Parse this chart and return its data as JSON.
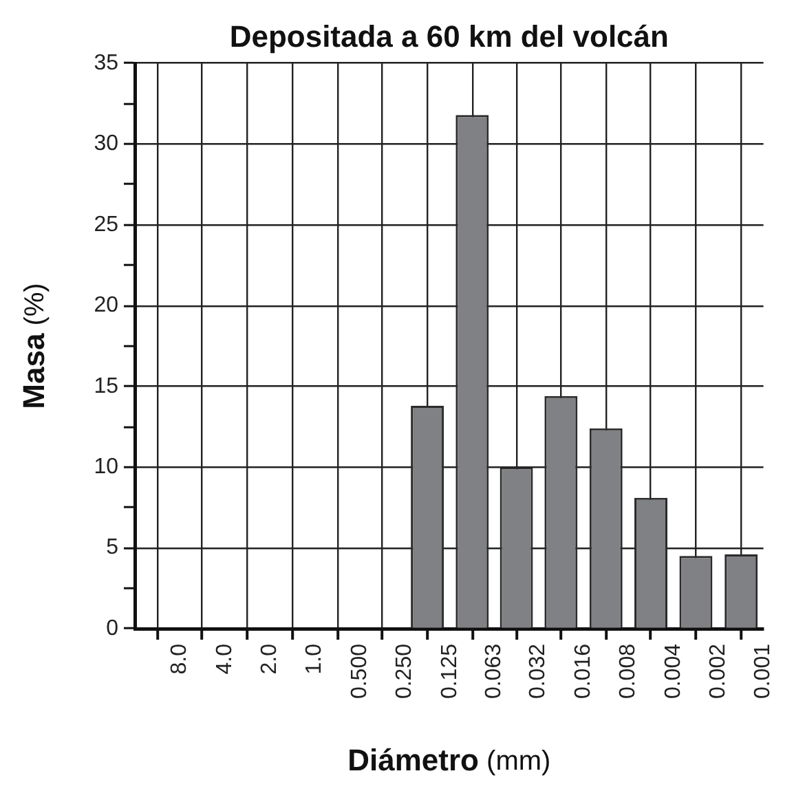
{
  "chart_data": {
    "type": "bar",
    "title": "Depositada a 60 km del volcán",
    "xlabel": "Diámetro (mm)",
    "ylabel": "Masa (%)",
    "x": [
      0.177,
      0.0887,
      0.0449,
      0.0226,
      0.0113,
      0.00566,
      0.00283,
      0.00141
    ],
    "log": "x",
    "values": [
      13.8,
      31.8,
      10,
      14.4,
      12.4,
      8.1,
      4.5,
      4.6
    ],
    "color": "#808184",
    "xlim": [
      16,
      0.001
    ],
    "xticks": [
      {
        "value": 16,
        "label": null
      },
      {
        "value": 8,
        "label": "8.0"
      },
      {
        "value": 4,
        "label": "4.0"
      },
      {
        "value": 2,
        "label": "2.0"
      },
      {
        "value": 1,
        "label": "1.0"
      },
      {
        "value": 0.5,
        "label": "0.500"
      },
      {
        "value": 0.25,
        "label": "0.250"
      },
      0.125,
      0.063,
      0.032,
      0.016,
      0.008,
      0.004,
      0.002,
      0.001
    ],
    "ylim": [
      0,
      35
    ],
    "yticks": [
      0,
      {
        "value": 2.5,
        "label": null
      },
      5,
      {
        "value": 7.5,
        "label": null
      },
      10,
      {
        "value": 12.5,
        "label": null
      },
      15,
      {
        "value": 17.5,
        "label": null
      },
      20,
      {
        "value": 22.5,
        "label": null
      },
      25,
      {
        "value": 27.5,
        "label": null
      },
      30,
      {
        "value": 32.5,
        "label": null
      },
      35
    ],
    "grid": true
  }
}
